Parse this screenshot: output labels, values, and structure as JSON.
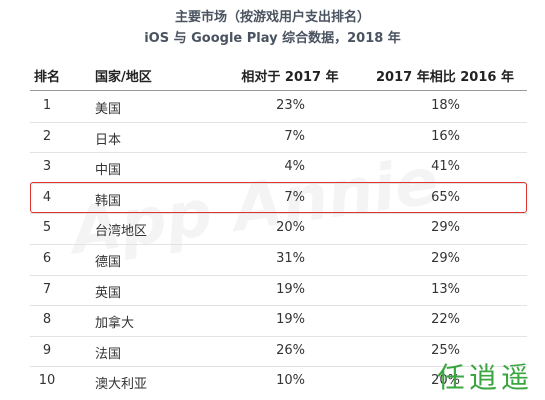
{
  "header": {
    "title": "主要市场（按游戏用户支出排名）",
    "subtitle": "iOS 与 Google Play 综合数据，2018 年"
  },
  "table": {
    "columns": [
      "排名",
      "国家/地区",
      "相对于 2017 年",
      "2017 年相比 2016 年"
    ],
    "rows": [
      [
        "1",
        "美国",
        "23%",
        "18%"
      ],
      [
        "2",
        "日本",
        "7%",
        "16%"
      ],
      [
        "3",
        "中国",
        "4%",
        "41%"
      ],
      [
        "4",
        "韩国",
        "7%",
        "65%"
      ],
      [
        "5",
        "台湾地区",
        "20%",
        "29%"
      ],
      [
        "6",
        "德国",
        "31%",
        "29%"
      ],
      [
        "7",
        "英国",
        "19%",
        "13%"
      ],
      [
        "8",
        "加拿大",
        "19%",
        "22%"
      ],
      [
        "9",
        "法国",
        "26%",
        "25%"
      ],
      [
        "10",
        "澳大利亚",
        "10%",
        "20%"
      ]
    ]
  },
  "watermark": "App Annie",
  "stamp": "任逍遥"
}
